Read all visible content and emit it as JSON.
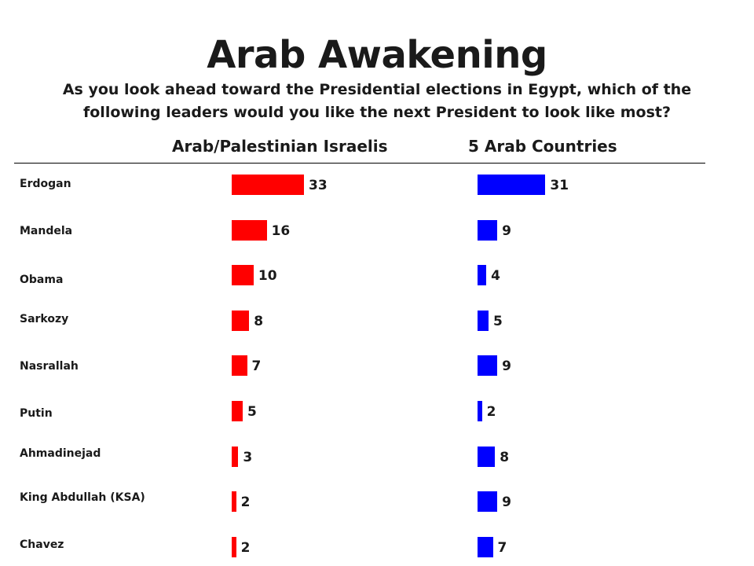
{
  "title": "Arab Awakening",
  "question_line1": "As you look ahead toward the Presidential elections in Egypt, which of the",
  "question_line2": "following leaders would you like the next President to look like most?",
  "chart_data": {
    "type": "bar",
    "orientation": "horizontal",
    "categories": [
      "Erdogan",
      "Mandela",
      "Obama",
      "Sarkozy",
      "Nasrallah",
      "Putin",
      "Ahmadinejad",
      "King Abdullah  (KSA)",
      "Chavez"
    ],
    "series": [
      {
        "name": "Arab/Palestinian Israelis",
        "color": "#ff0000",
        "values": [
          33,
          16,
          10,
          8,
          7,
          5,
          3,
          2,
          2
        ]
      },
      {
        "name": "5 Arab Countries",
        "color": "#0000ff",
        "values": [
          31,
          9,
          4,
          5,
          9,
          2,
          8,
          9,
          7
        ]
      }
    ],
    "xlim": [
      0,
      33
    ],
    "grid": false,
    "legend": "column headers above bars"
  }
}
